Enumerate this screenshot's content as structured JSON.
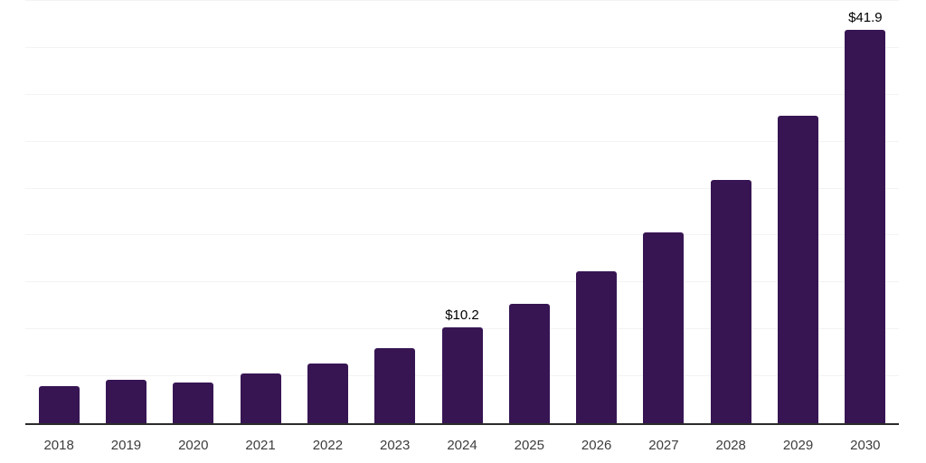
{
  "chart_data": {
    "type": "bar",
    "title": "",
    "xlabel": "",
    "ylabel": "",
    "categories": [
      "2018",
      "2019",
      "2020",
      "2021",
      "2022",
      "2023",
      "2024",
      "2025",
      "2026",
      "2027",
      "2028",
      "2029",
      "2030"
    ],
    "values": [
      4.0,
      4.6,
      4.3,
      5.3,
      6.4,
      8.0,
      10.2,
      12.7,
      16.2,
      20.3,
      25.9,
      32.8,
      41.9
    ],
    "bar_labels": [
      "",
      "",
      "",
      "",
      "",
      "",
      "$10.2",
      "",
      "",
      "",
      "",
      "",
      "$41.9"
    ],
    "ylim": [
      0,
      45
    ],
    "grid": true,
    "gridline_step": 5,
    "legend": false,
    "colors": {
      "bar": "#371553",
      "gridline": "#f3f3f3",
      "axis_line": "#2b2b2b",
      "tick_label": "#3d3d3d",
      "value_label": "#000000",
      "background": "#ffffff"
    }
  }
}
